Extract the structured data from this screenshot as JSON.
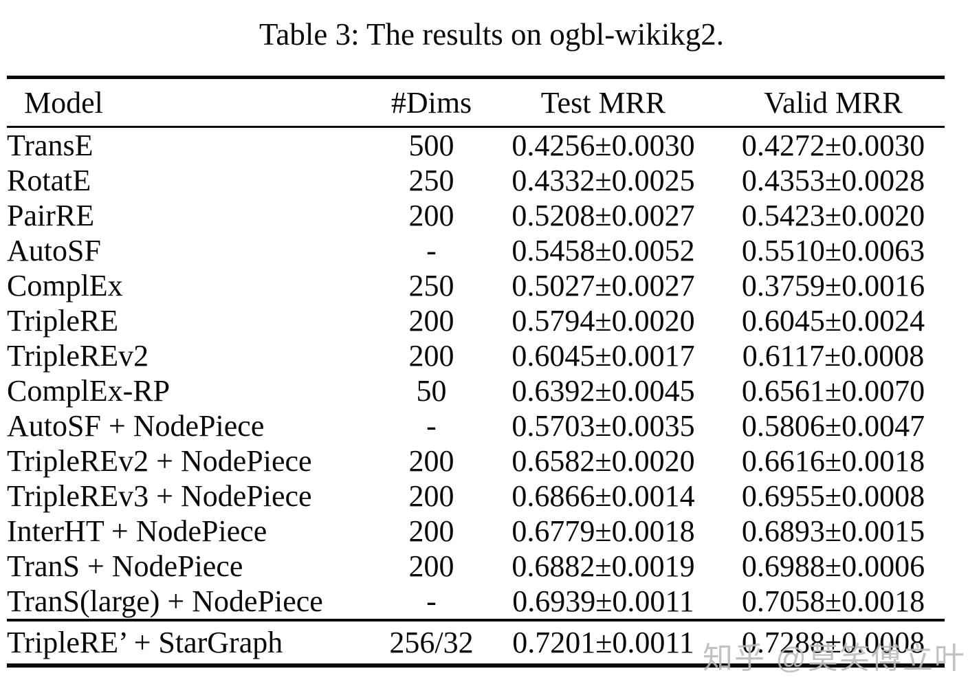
{
  "caption": "Table 3: The results on ogbl-wikikg2.",
  "colors": {
    "background": "#ffffff",
    "text": "#0a0a0a",
    "rule": "#0a0a0a",
    "watermark": "#b9b9b9"
  },
  "watermark": {
    "text": "知乎 @莫笑傅立叶"
  },
  "chart_data": {
    "type": "table",
    "title": "Table 3: The results on ogbl-wikikg2.",
    "columns": [
      "Model",
      "#Dims",
      "Test MRR",
      "Valid MRR"
    ],
    "rows": [
      {
        "model": "TransE",
        "dims": "500",
        "test_mrr": "0.4256±0.0030",
        "valid_mrr": "0.4272±0.0030"
      },
      {
        "model": "RotatE",
        "dims": "250",
        "test_mrr": "0.4332±0.0025",
        "valid_mrr": "0.4353±0.0028"
      },
      {
        "model": "PairRE",
        "dims": "200",
        "test_mrr": "0.5208±0.0027",
        "valid_mrr": "0.5423±0.0020"
      },
      {
        "model": "AutoSF",
        "dims": "-",
        "test_mrr": "0.5458±0.0052",
        "valid_mrr": "0.5510±0.0063"
      },
      {
        "model": "ComplEx",
        "dims": "250",
        "test_mrr": "0.5027±0.0027",
        "valid_mrr": "0.3759±0.0016"
      },
      {
        "model": "TripleRE",
        "dims": "200",
        "test_mrr": "0.5794±0.0020",
        "valid_mrr": "0.6045±0.0024"
      },
      {
        "model": "TripleREv2",
        "dims": "200",
        "test_mrr": "0.6045±0.0017",
        "valid_mrr": "0.6117±0.0008"
      },
      {
        "model": "ComplEx-RP",
        "dims": "50",
        "test_mrr": "0.6392±0.0045",
        "valid_mrr": "0.6561±0.0070"
      },
      {
        "model": "AutoSF + NodePiece",
        "dims": "-",
        "test_mrr": "0.5703±0.0035",
        "valid_mrr": "0.5806±0.0047"
      },
      {
        "model": "TripleREv2 + NodePiece",
        "dims": "200",
        "test_mrr": "0.6582±0.0020",
        "valid_mrr": "0.6616±0.0018"
      },
      {
        "model": "TripleREv3 + NodePiece",
        "dims": "200",
        "test_mrr": "0.6866±0.0014",
        "valid_mrr": "0.6955±0.0008"
      },
      {
        "model": "InterHT + NodePiece",
        "dims": "200",
        "test_mrr": "0.6779±0.0018",
        "valid_mrr": "0.6893±0.0015"
      },
      {
        "model": "TranS + NodePiece",
        "dims": "200",
        "test_mrr": "0.6882±0.0019",
        "valid_mrr": "0.6988±0.0006"
      },
      {
        "model": "TranS(large) + NodePiece",
        "dims": "-",
        "test_mrr": "0.6939±0.0011",
        "valid_mrr": "0.7058±0.0018"
      }
    ],
    "footer_rows": [
      {
        "model": "TripleRE’ + StarGraph",
        "dims": "256/32",
        "test_mrr": "0.7201±0.0011",
        "valid_mrr": "0.7288±0.0008"
      }
    ]
  }
}
